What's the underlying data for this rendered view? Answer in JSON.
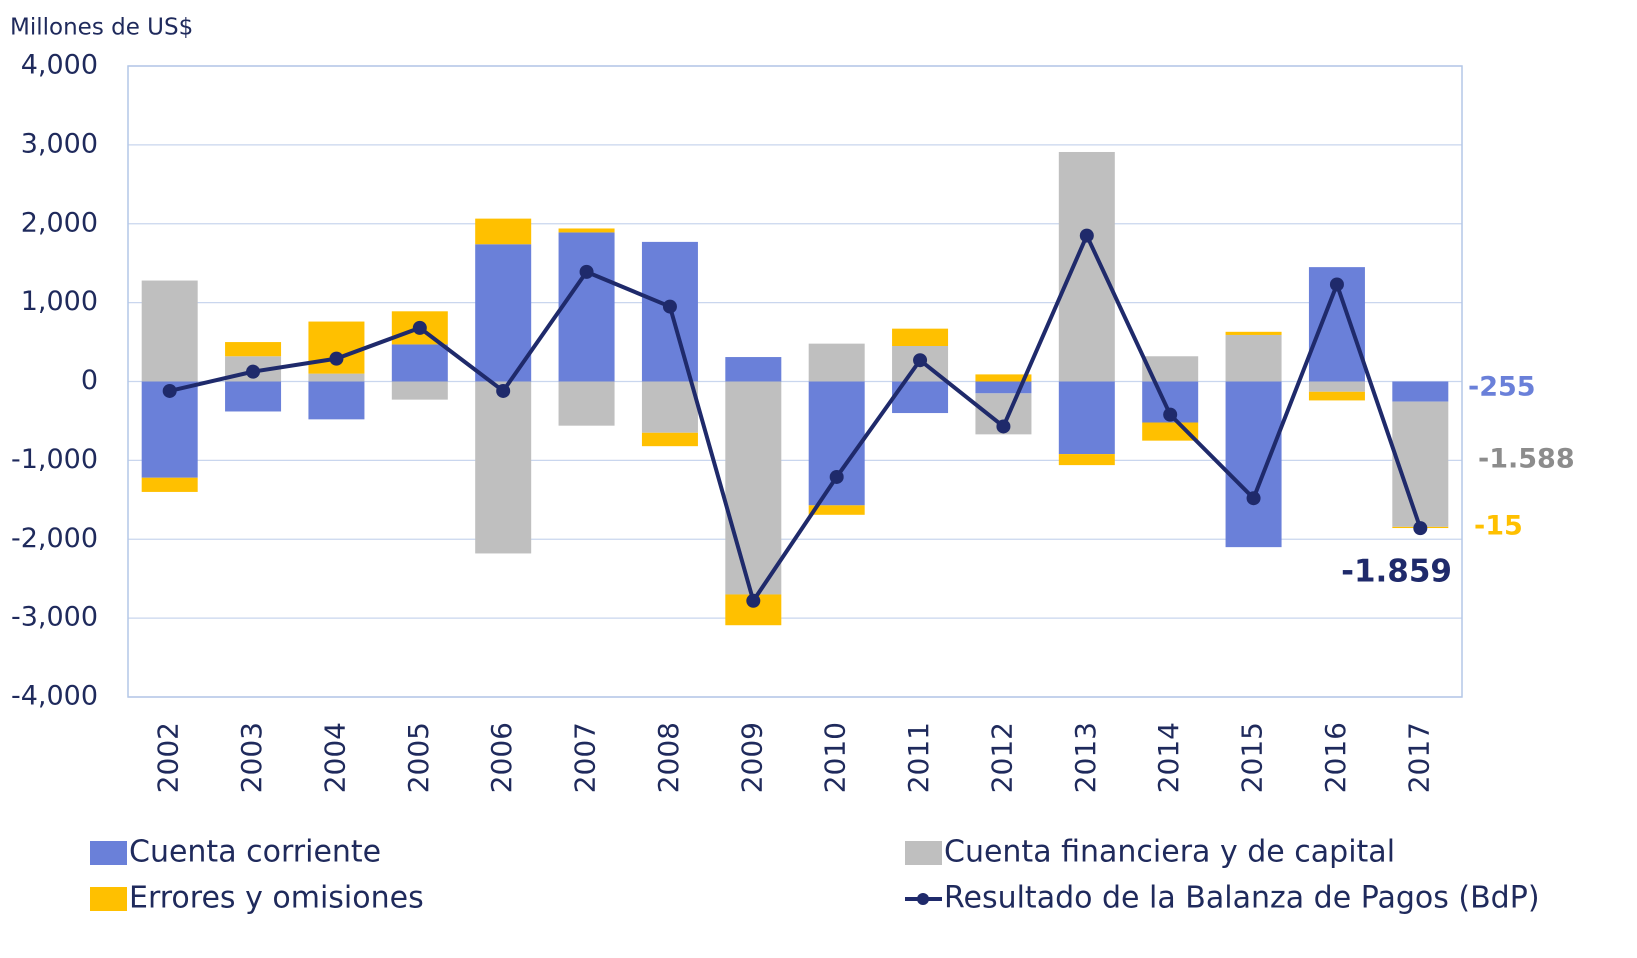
{
  "chart_data": {
    "type": "bar",
    "stacked": true,
    "y_label": "Millones de US$",
    "categories": [
      "2002",
      "2003",
      "2004",
      "2005",
      "2006",
      "2007",
      "2008",
      "2009",
      "2010",
      "2011",
      "2012",
      "2013",
      "2014",
      "2015",
      "2016",
      "2017"
    ],
    "series": [
      {
        "name": "Cuenta corriente",
        "type": "bar",
        "color": "#6a80d9",
        "values": [
          -1220,
          -380,
          -480,
          470,
          1740,
          1890,
          1770,
          310,
          -1570,
          -400,
          -150,
          -920,
          -520,
          -2100,
          1450,
          -255
        ],
        "value_labels": [
          null,
          null,
          null,
          null,
          null,
          null,
          null,
          null,
          null,
          null,
          null,
          null,
          null,
          null,
          null,
          "-255"
        ]
      },
      {
        "name": "Cuenta financiera y de capital",
        "type": "bar",
        "color": "#bfbfbf",
        "values": [
          1280,
          320,
          100,
          -230,
          -2180,
          -560,
          -650,
          -2700,
          480,
          450,
          -520,
          2910,
          320,
          590,
          -130,
          -1588
        ],
        "value_labels": [
          null,
          null,
          null,
          null,
          null,
          null,
          null,
          null,
          null,
          null,
          null,
          null,
          null,
          null,
          null,
          "-1.588"
        ]
      },
      {
        "name": "Errores y omisiones",
        "type": "bar",
        "color": "#ffc000",
        "values": [
          -180,
          180,
          660,
          420,
          325,
          50,
          -170,
          -390,
          -120,
          220,
          90,
          -140,
          -230,
          40,
          -110,
          -15
        ],
        "value_labels": [
          null,
          null,
          null,
          null,
          null,
          null,
          null,
          null,
          null,
          null,
          null,
          null,
          null,
          null,
          null,
          "-15"
        ]
      },
      {
        "name": "Resultado de la Balanza de Pagos (BdP)",
        "type": "line",
        "color": "#1f2a6b",
        "values": [
          -120,
          125,
          290,
          680,
          -120,
          1390,
          950,
          -2780,
          -1210,
          270,
          -570,
          1850,
          -420,
          -1480,
          1230,
          -1859
        ],
        "value_labels": [
          null,
          null,
          null,
          null,
          null,
          null,
          null,
          null,
          null,
          null,
          null,
          null,
          null,
          null,
          null,
          "-1.859"
        ]
      }
    ],
    "ylim": [
      -4000,
      4000
    ],
    "yticks": [
      {
        "value": -4000,
        "label": "-4,000"
      },
      {
        "value": -3000,
        "label": "-3,000"
      },
      {
        "value": -2000,
        "label": "-2,000"
      },
      {
        "value": -1000,
        "label": "-1,000"
      },
      0,
      {
        "value": 1000,
        "label": "1,000"
      },
      {
        "value": 2000,
        "label": "2,000"
      },
      {
        "value": 3000,
        "label": "3,000"
      },
      {
        "value": 4000,
        "label": "4,000"
      }
    ],
    "grid": true,
    "legend": "bottom"
  }
}
